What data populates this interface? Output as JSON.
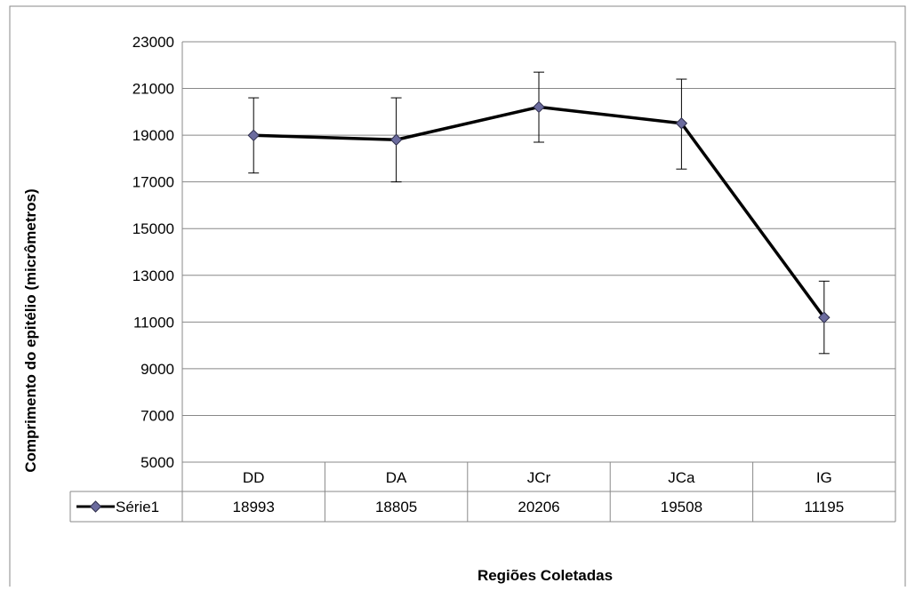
{
  "chart_data": {
    "type": "line",
    "categories": [
      "DD",
      "DA",
      "JCr",
      "JCa",
      "IG"
    ],
    "series": [
      {
        "name": "Série1",
        "values": [
          18993,
          18805,
          20206,
          19508,
          11195
        ],
        "error_low": [
          17380,
          17000,
          18700,
          17550,
          9650
        ],
        "error_high": [
          20600,
          20600,
          21700,
          21400,
          12750
        ]
      }
    ],
    "ylabel": "Comprimento do epitélio (micrômetros)",
    "xlabel": "Regiões Coletadas",
    "ylim": [
      5000,
      23000
    ],
    "yticks": [
      5000,
      7000,
      9000,
      11000,
      13000,
      15000,
      17000,
      19000,
      21000,
      23000
    ],
    "grid": true,
    "legend": "data-table",
    "colors": {
      "line": "#000000",
      "marker_fill": "#6B6B9E",
      "marker_stroke": "#2E2E4A",
      "grid": "#888888",
      "frame": "#888888"
    }
  }
}
